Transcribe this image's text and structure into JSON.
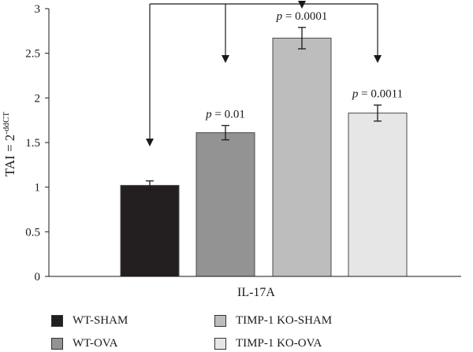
{
  "chart_data": {
    "type": "bar",
    "ylabel": "TAI = 2",
    "ylabel_sup": "-ddCT",
    "xlabel": "IL-17A",
    "ylim": [
      0,
      3
    ],
    "yticks": [
      "0",
      "0.5",
      "1",
      "1.5",
      "2",
      "2.5",
      "3"
    ],
    "series": [
      {
        "name": "WT-SHAM",
        "value": 1.02,
        "error": 0.05,
        "color": "#231f20",
        "pvalue": ""
      },
      {
        "name": "WT-OVA",
        "value": 1.61,
        "error": 0.08,
        "color": "#939393",
        "pvalue": "= 0.01"
      },
      {
        "name": "TIMP-1 KO-SHAM",
        "value": 2.67,
        "error": 0.12,
        "color": "#bdbdbd",
        "pvalue": "= 0.0001"
      },
      {
        "name": "TIMP-1 KO-OVA",
        "value": 1.83,
        "error": 0.09,
        "color": "#e6e6e7",
        "pvalue": "= 0.0011"
      }
    ],
    "p_prefix": "p",
    "comparison_reference": "WT-SHAM",
    "legend_position": "bottom"
  }
}
